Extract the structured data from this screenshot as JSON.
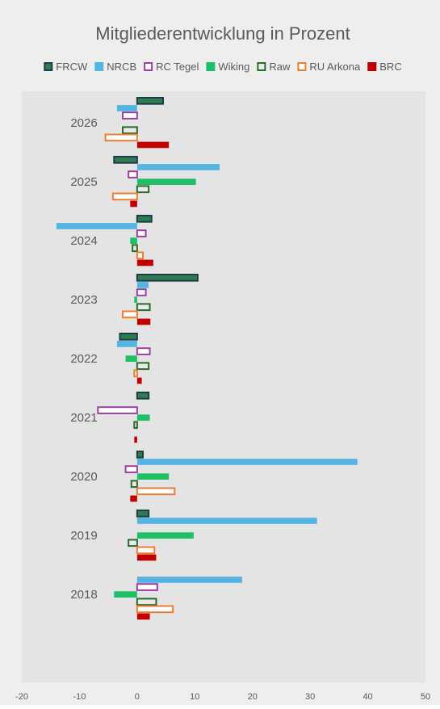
{
  "chart_data": {
    "type": "bar",
    "orientation": "horizontal",
    "title": "Mitgliederentwicklung in Prozent",
    "xlabel": "",
    "ylabel": "",
    "xlim": [
      -20,
      50
    ],
    "xticks": [
      "-20",
      "-10",
      "0",
      "10",
      "20",
      "30",
      "40",
      "50"
    ],
    "grid": false,
    "legend_position": "top",
    "categories": [
      "2026",
      "2025",
      "2024",
      "2023",
      "2022",
      "2021",
      "2020",
      "2019",
      "2018"
    ],
    "series": [
      {
        "name": "FRCW",
        "style": "outline",
        "color": "#1f3a4d",
        "fill": "#2e7d4f",
        "values": [
          4.5,
          -4,
          2.5,
          10.5,
          -3,
          2,
          1,
          2,
          null
        ]
      },
      {
        "name": "NRCB",
        "style": "solid",
        "color": "#56b4e3",
        "values": [
          -3.5,
          14.3,
          -14,
          2,
          -3.5,
          null,
          38.2,
          31.2,
          18.2
        ]
      },
      {
        "name": "RC Tegel",
        "style": "outline",
        "color": "#9b3fa0",
        "fill": "#ffffff",
        "values": [
          -2.5,
          -1.5,
          1.5,
          1.5,
          2.2,
          -6.8,
          -2,
          null,
          3.5
        ]
      },
      {
        "name": "Wiking",
        "style": "solid",
        "color": "#1ebf67",
        "values": [
          null,
          10.2,
          -1.2,
          -0.5,
          -2,
          2.2,
          5.5,
          9.8,
          -4
        ]
      },
      {
        "name": "Raw",
        "style": "outline",
        "color": "#2a6b2a",
        "fill": "#eaeaea",
        "values": [
          -2.5,
          2,
          -0.8,
          2.2,
          2,
          -0.5,
          -1,
          -1.5,
          3.3
        ]
      },
      {
        "name": "RU Arkona",
        "style": "outline",
        "color": "#ed7d31",
        "fill": "#ffffff",
        "values": [
          -5.5,
          -4.2,
          1,
          -2.5,
          -0.5,
          null,
          6.5,
          3,
          6.2
        ]
      },
      {
        "name": "BRC",
        "style": "solid",
        "color": "#c00000",
        "values": [
          5.5,
          -1.2,
          2.8,
          2.3,
          0.8,
          -0.5,
          -1.2,
          3.3,
          2.2
        ]
      }
    ]
  }
}
